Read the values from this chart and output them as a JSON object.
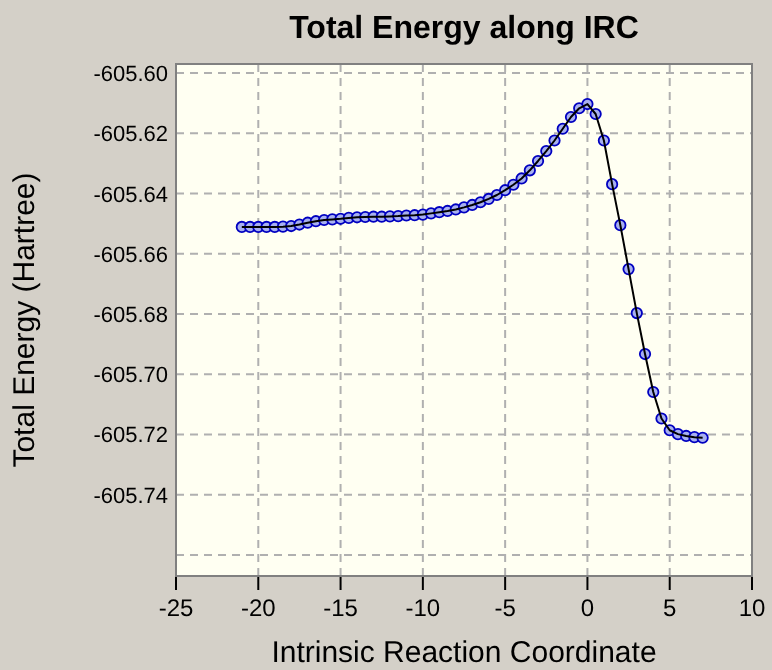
{
  "chart_data": {
    "type": "line",
    "title": "Total Energy along IRC",
    "xlabel": "Intrinsic Reaction Coordinate",
    "ylabel": "Total Energy (Hartree)",
    "xlim": [
      -25,
      10
    ],
    "xticks": [
      -25,
      -20,
      -15,
      -10,
      -5,
      0,
      5,
      10
    ],
    "ylim": [
      -605.767,
      -605.597
    ],
    "yticks": [
      {
        "value": -605.6,
        "label": "-605.60"
      },
      {
        "value": -605.62,
        "label": "-605.62"
      },
      {
        "value": -605.64,
        "label": "-605.64"
      },
      {
        "value": -605.66,
        "label": "-605.66"
      },
      {
        "value": -605.68,
        "label": "-605.68"
      },
      {
        "value": -605.7,
        "label": "-605.70"
      },
      {
        "value": -605.72,
        "label": "-605.72"
      },
      {
        "value": -605.74,
        "label": "-605.74"
      },
      {
        "value": -605.76,
        "label": null
      }
    ],
    "grid": true,
    "marker": "circle",
    "line_style": "solid",
    "series": [
      {
        "color": "#0000c0",
        "x": [
          -21,
          -20.5,
          -20,
          -19.5,
          -19,
          -18.5,
          -18,
          -17.5,
          -17,
          -16.5,
          -16,
          -15.5,
          -15,
          -14.5,
          -14,
          -13.5,
          -13,
          -12.5,
          -12,
          -11.5,
          -11,
          -10.5,
          -10,
          -9.5,
          -9,
          -8.5,
          -8,
          -7.5,
          -7,
          -6.5,
          -6,
          -5.5,
          -5,
          -4.5,
          -4,
          -3.5,
          -3,
          -2.5,
          -2,
          -1.5,
          -1,
          -0.5,
          0,
          0.5,
          1,
          1.5,
          2,
          2.5,
          3,
          3.5,
          4,
          4.5,
          5,
          5.5,
          6,
          6.5,
          7
        ],
        "values": [
          -605.6511,
          -605.6511,
          -605.6511,
          -605.6511,
          -605.6511,
          -605.651,
          -605.6508,
          -605.6503,
          -605.6497,
          -605.6492,
          -605.6488,
          -605.6486,
          -605.6484,
          -605.6481,
          -605.6479,
          -605.6478,
          -605.6477,
          -605.6477,
          -605.6476,
          -605.6475,
          -605.6473,
          -605.6472,
          -605.647,
          -605.6466,
          -605.6462,
          -605.6458,
          -605.6453,
          -605.6446,
          -605.6438,
          -605.6429,
          -605.6418,
          -605.6405,
          -605.6389,
          -605.6371,
          -605.635,
          -605.6323,
          -605.6292,
          -605.6259,
          -605.6224,
          -605.6185,
          -605.6146,
          -605.6117,
          -605.6103,
          -605.6136,
          -605.6224,
          -605.6369,
          -605.6505,
          -605.6651,
          -605.6797,
          -605.6933,
          -605.7059,
          -605.7147,
          -605.7186,
          -605.7199,
          -605.7205,
          -605.7209,
          -605.7211
        ]
      }
    ]
  }
}
